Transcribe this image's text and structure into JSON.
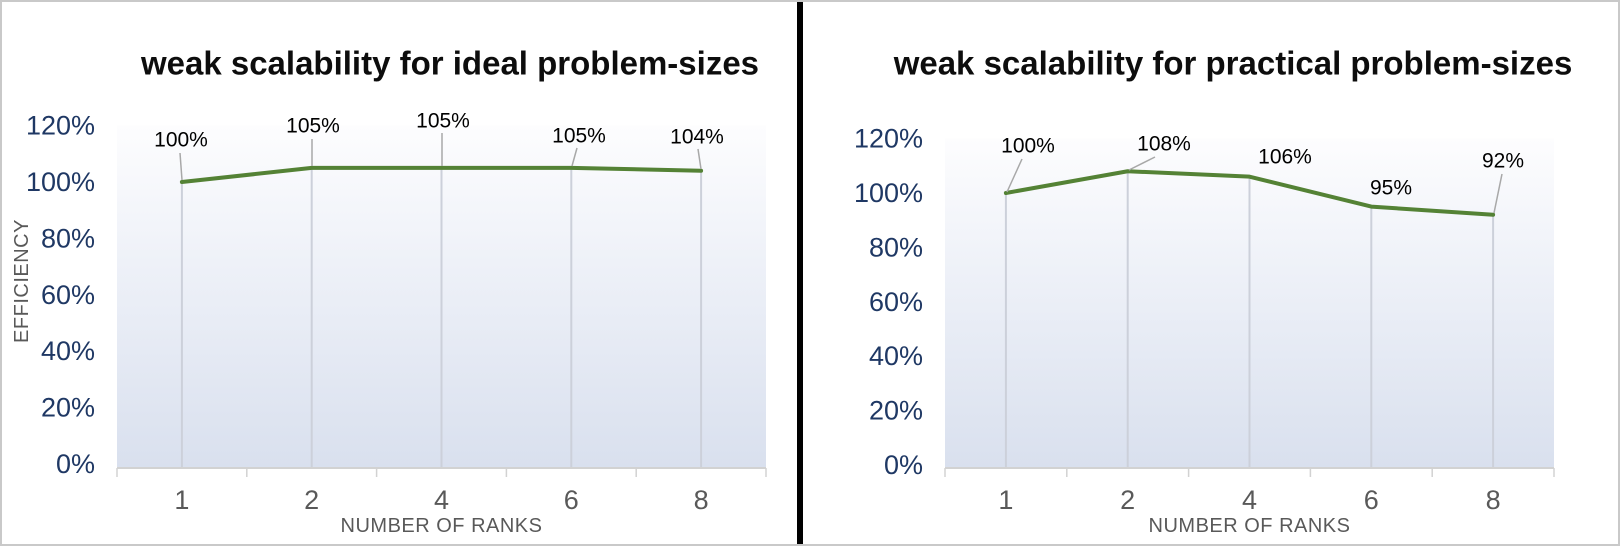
{
  "page": {
    "background_color": "#ffffff",
    "outer_border_color": "#c9c9c9",
    "divider_color": "#000000"
  },
  "chart_data": [
    {
      "type": "line",
      "title": "weak scalability for ideal problem-sizes",
      "xlabel": "NUMBER OF RANKS",
      "ylabel": "EFFICIENCY",
      "categories": [
        "1",
        "2",
        "4",
        "6",
        "8"
      ],
      "x_values": [
        1,
        2,
        4,
        6,
        8
      ],
      "series": [
        {
          "name": "efficiency",
          "values": [
            100,
            105,
            105,
            105,
            104
          ]
        }
      ],
      "data_labels": [
        "100%",
        "105%",
        "105%",
        "105%",
        "104%"
      ],
      "yticks": [
        {
          "value": 0,
          "label": "0%"
        },
        {
          "value": 20,
          "label": "20%"
        },
        {
          "value": 40,
          "label": "40%"
        },
        {
          "value": 60,
          "label": "60%"
        },
        {
          "value": 80,
          "label": "80%"
        },
        {
          "value": 100,
          "label": "100%"
        },
        {
          "value": 120,
          "label": "120%"
        }
      ],
      "ylim": [
        0,
        120
      ],
      "grid": "drop-lines",
      "legend_position": "none",
      "colors": {
        "line": "#548235",
        "axis_text": "#1f3864",
        "muted_text": "#595959",
        "data_label_text": "#000000",
        "title_text": "#0d0d0d",
        "plot_fill_bottom": "#d9e0ee",
        "plot_fill_top": "#fdfdfe",
        "drop_line": "#ccd0da",
        "leader_line": "#a8a8a8",
        "axis_line": "#d2d2d2"
      }
    },
    {
      "type": "line",
      "title": "weak scalability for practical problem-sizes",
      "xlabel": "NUMBER OF RANKS",
      "ylabel": "",
      "categories": [
        "1",
        "2",
        "4",
        "6",
        "8"
      ],
      "x_values": [
        1,
        2,
        4,
        6,
        8
      ],
      "series": [
        {
          "name": "efficiency",
          "values": [
            100,
            108,
            106,
            95,
            92
          ]
        }
      ],
      "data_labels": [
        "100%",
        "108%",
        "106%",
        "95%",
        "92%"
      ],
      "yticks": [
        {
          "value": 0,
          "label": "0%"
        },
        {
          "value": 20,
          "label": "20%"
        },
        {
          "value": 40,
          "label": "40%"
        },
        {
          "value": 60,
          "label": "60%"
        },
        {
          "value": 80,
          "label": "80%"
        },
        {
          "value": 100,
          "label": "100%"
        },
        {
          "value": 120,
          "label": "120%"
        }
      ],
      "ylim": [
        0,
        120
      ],
      "grid": "drop-lines",
      "legend_position": "none",
      "colors": {
        "line": "#548235",
        "axis_text": "#1f3864",
        "muted_text": "#595959",
        "data_label_text": "#000000",
        "title_text": "#0d0d0d",
        "plot_fill_bottom": "#d9e0ee",
        "plot_fill_top": "#fdfdfe",
        "drop_line": "#ccd0da",
        "leader_line": "#a8a8a8",
        "axis_line": "#d2d2d2"
      }
    }
  ]
}
